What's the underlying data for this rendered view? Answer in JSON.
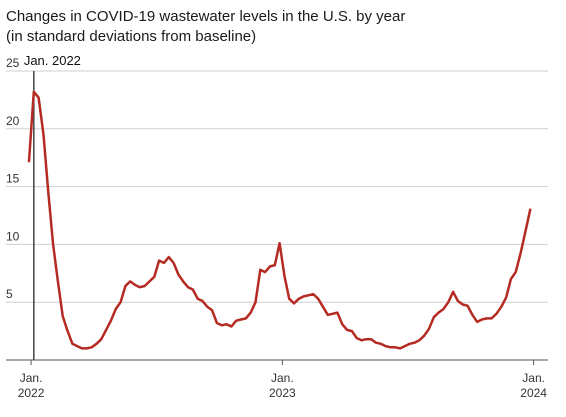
{
  "title": "Changes in COVID-19 wastewater levels in the U.S. by year",
  "subtitle": "(in standard deviations from baseline)",
  "colors": {
    "line": "#b52b23",
    "grid": "#cfcfcf",
    "axis": "#555555",
    "annotation": "#444444"
  },
  "chart_data": {
    "type": "line",
    "title": "Changes in COVID-19 wastewater levels in the U.S. by year",
    "subtitle": "(in standard deviations from baseline)",
    "ylim": [
      0,
      25
    ],
    "yticks": [
      5,
      10,
      15,
      20,
      25
    ],
    "ytick_labels": [
      "5",
      "10",
      "15",
      "20",
      "25"
    ],
    "xlim": [
      "2021-12-29",
      "2024-01-03"
    ],
    "xticks": [
      {
        "date": "2022-01-01",
        "line1": "Jan.",
        "line2": "2022"
      },
      {
        "date": "2023-01-01",
        "line1": "Jan.",
        "line2": "2023"
      },
      {
        "date": "2024-01-01",
        "line1": "Jan.",
        "line2": "2024"
      }
    ],
    "grid": true,
    "annotation": {
      "date": "2022-01-05",
      "label": "Jan. 2022"
    },
    "series": [
      {
        "x": [
          "2021-12-29",
          "2022-01-05",
          "2022-01-12",
          "2022-01-19",
          "2022-01-26",
          "2022-02-02",
          "2022-02-09",
          "2022-02-16",
          "2022-02-23",
          "2022-03-02",
          "2022-03-09",
          "2022-03-16",
          "2022-03-23",
          "2022-03-30",
          "2022-04-06",
          "2022-04-13",
          "2022-04-20",
          "2022-04-27",
          "2022-05-04",
          "2022-05-11",
          "2022-05-18",
          "2022-05-25",
          "2022-06-01",
          "2022-06-08",
          "2022-06-15",
          "2022-06-22",
          "2022-06-29",
          "2022-07-06",
          "2022-07-13",
          "2022-07-20",
          "2022-07-27",
          "2022-08-03",
          "2022-08-10",
          "2022-08-17",
          "2022-08-24",
          "2022-08-31",
          "2022-09-07",
          "2022-09-14",
          "2022-09-21",
          "2022-09-28",
          "2022-10-05",
          "2022-10-12",
          "2022-10-19",
          "2022-10-26",
          "2022-11-02",
          "2022-11-09",
          "2022-11-16",
          "2022-11-23",
          "2022-11-30",
          "2022-12-07",
          "2022-12-14",
          "2022-12-21",
          "2022-12-28",
          "2023-01-04",
          "2023-01-11",
          "2023-01-18",
          "2023-01-25",
          "2023-02-01",
          "2023-02-08",
          "2023-02-15",
          "2023-02-22",
          "2023-03-01",
          "2023-03-08",
          "2023-03-15",
          "2023-03-22",
          "2023-03-29",
          "2023-04-05",
          "2023-04-12",
          "2023-04-19",
          "2023-04-26",
          "2023-05-03",
          "2023-05-10",
          "2023-05-17",
          "2023-05-24",
          "2023-05-31",
          "2023-06-07",
          "2023-06-14",
          "2023-06-21",
          "2023-06-28",
          "2023-07-05",
          "2023-07-12",
          "2023-07-19",
          "2023-07-26",
          "2023-08-02",
          "2023-08-09",
          "2023-08-16",
          "2023-08-23",
          "2023-08-30",
          "2023-09-06",
          "2023-09-13",
          "2023-09-20",
          "2023-09-27",
          "2023-10-04",
          "2023-10-11",
          "2023-10-18",
          "2023-10-25",
          "2023-11-01",
          "2023-11-08",
          "2023-11-15",
          "2023-11-22",
          "2023-11-29",
          "2023-12-06",
          "2023-12-13",
          "2023-12-20",
          "2023-12-27"
        ],
        "values": [
          17.2,
          23.2,
          22.7,
          19.5,
          14.5,
          10.0,
          6.8,
          3.8,
          2.5,
          1.4,
          1.2,
          1.0,
          1.0,
          1.1,
          1.4,
          1.8,
          2.6,
          3.4,
          4.4,
          5.0,
          6.4,
          6.8,
          6.5,
          6.3,
          6.4,
          6.8,
          7.2,
          8.6,
          8.4,
          8.9,
          8.4,
          7.4,
          6.8,
          6.3,
          6.1,
          5.3,
          5.1,
          4.6,
          4.3,
          3.2,
          3.0,
          3.1,
          2.9,
          3.4,
          3.5,
          3.6,
          4.1,
          5.0,
          7.8,
          7.6,
          8.1,
          8.2,
          10.1,
          7.3,
          5.3,
          4.9,
          5.3,
          5.5,
          5.6,
          5.7,
          5.3,
          4.6,
          3.9,
          4.0,
          4.1,
          3.1,
          2.6,
          2.5,
          1.9,
          1.7,
          1.8,
          1.8,
          1.5,
          1.4,
          1.2,
          1.1,
          1.1,
          1.0,
          1.2,
          1.4,
          1.5,
          1.7,
          2.1,
          2.7,
          3.7,
          4.1,
          4.4,
          5.0,
          5.9,
          5.1,
          4.8,
          4.7,
          3.9,
          3.3,
          3.5,
          3.6,
          3.6,
          4.0,
          4.6,
          5.4,
          7.0,
          7.6,
          9.2,
          11.1,
          13.0
        ]
      }
    ]
  }
}
